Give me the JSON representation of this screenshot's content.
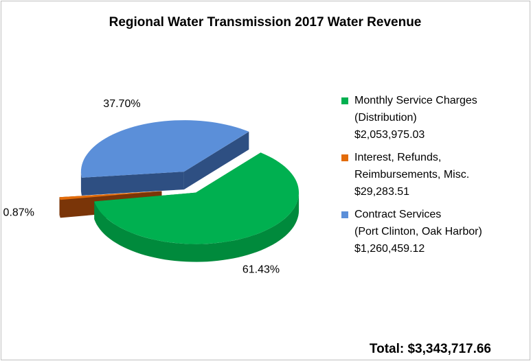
{
  "chart_data": {
    "type": "pie3d",
    "title": "Regional Water Transmission  2017 Water Revenue",
    "categories": [
      "Monthly Service Charges\n(Distribution)",
      "Interest, Refunds,\nReimbursements, Misc.",
      "Contract Services\n(Port Clinton, Oak Harbor)"
    ],
    "amounts": [
      "$2,053,975.03",
      "$29,283.51",
      "$1,260,459.12"
    ],
    "values": [
      61.43,
      0.87,
      37.7
    ],
    "value_labels": [
      "61.43%",
      "0.87%",
      "37.70%"
    ],
    "colors": [
      "#00b050",
      "#e36c0a",
      "#5b8fd9"
    ],
    "side_colors": [
      "#008a3c",
      "#7a3508",
      "#2e4f82"
    ],
    "total": "Total:  $3,343,717.66"
  }
}
